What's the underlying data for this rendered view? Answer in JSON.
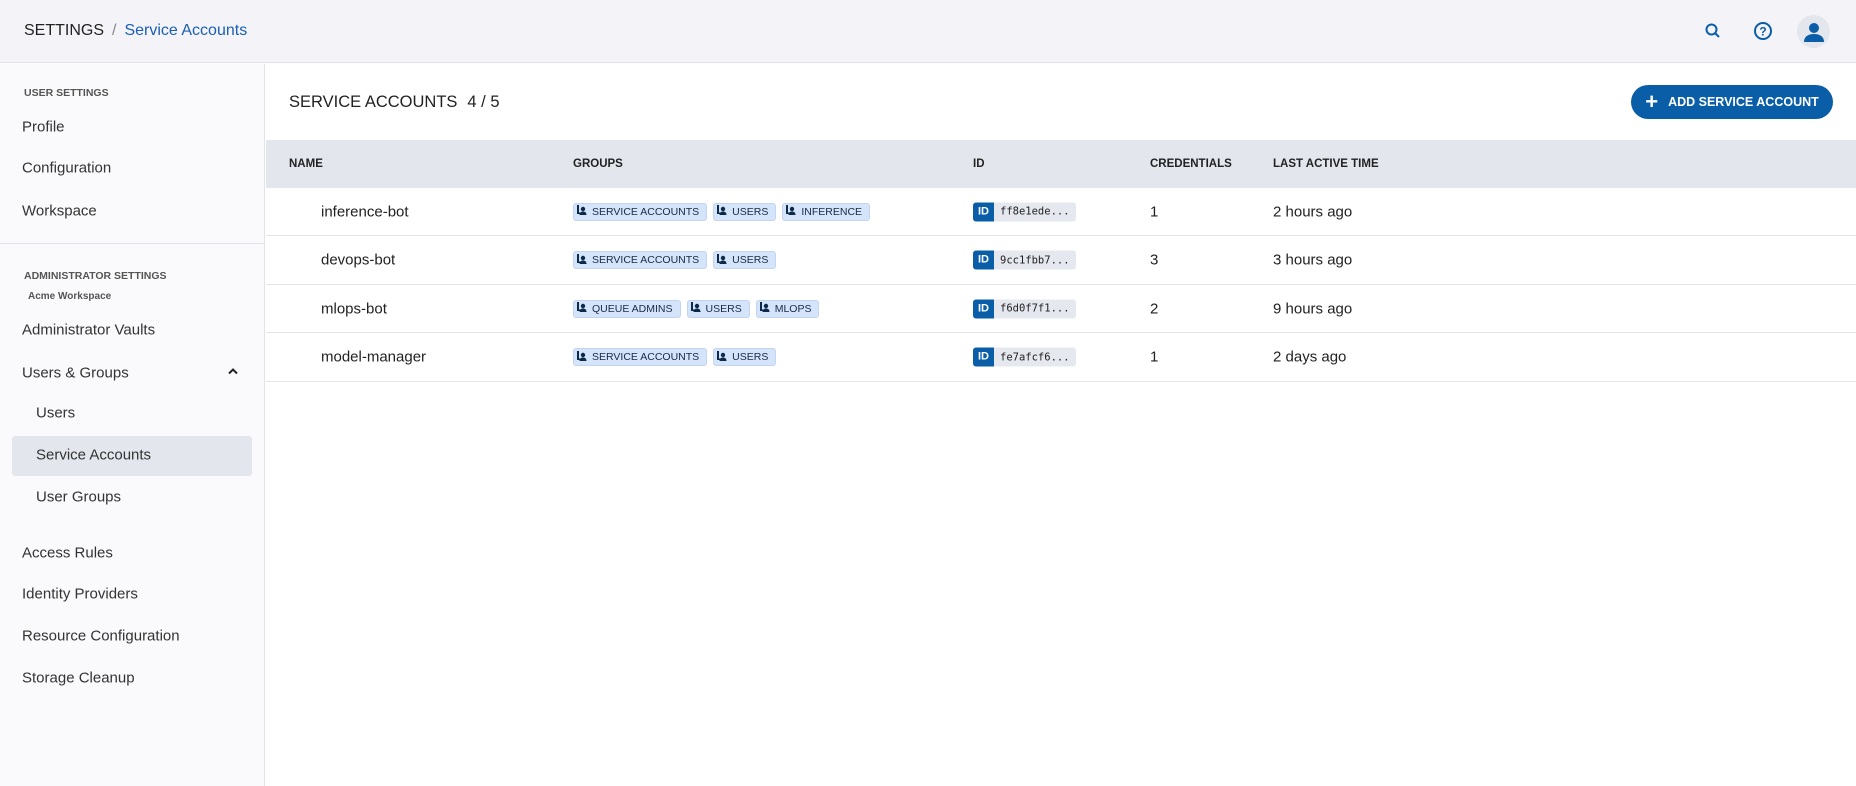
{
  "header": {
    "breadcrumb_root": "SETTINGS",
    "breadcrumb_sep": "/",
    "breadcrumb_current": "Service Accounts"
  },
  "sidebar": {
    "user_settings": "USER SETTINGS",
    "user_items": [
      "Profile",
      "Configuration",
      "Workspace"
    ],
    "admin_settings": "ADMINISTRATOR SETTINGS",
    "workspace_name": "Acme Workspace",
    "admin_vaults": "Administrator Vaults",
    "users_groups": "Users & Groups",
    "users_groups_children": [
      "Users",
      "Service Accounts",
      "User Groups"
    ],
    "selected": "Service Accounts",
    "other_items": [
      "Access Rules",
      "Identity Providers",
      "Resource Configuration",
      "Storage Cleanup"
    ]
  },
  "main": {
    "title": "SERVICE ACCOUNTS",
    "count": "4 / 5",
    "add_button": "ADD SERVICE ACCOUNT",
    "columns": [
      "NAME",
      "GROUPS",
      "ID",
      "CREDENTIALS",
      "LAST ACTIVE TIME"
    ],
    "id_tag": "ID",
    "rows": [
      {
        "name": "inference-bot",
        "groups": [
          "SERVICE ACCOUNTS",
          "USERS",
          "INFERENCE"
        ],
        "id": "ff8e1ede...",
        "credentials": "1",
        "last_active": "2 hours ago"
      },
      {
        "name": "devops-bot",
        "groups": [
          "SERVICE ACCOUNTS",
          "USERS"
        ],
        "id": "9cc1fbb7...",
        "credentials": "3",
        "last_active": "3 hours ago"
      },
      {
        "name": "mlops-bot",
        "groups": [
          "QUEUE ADMINS",
          "USERS",
          "MLOPS"
        ],
        "id": "f6d0f7f1...",
        "credentials": "2",
        "last_active": "9 hours ago"
      },
      {
        "name": "model-manager",
        "groups": [
          "SERVICE ACCOUNTS",
          "USERS"
        ],
        "id": "fe7afcf6...",
        "credentials": "1",
        "last_active": "2 days ago"
      }
    ]
  },
  "colors": {
    "accent": "#0a5ea8",
    "chip_bg": "#d4e4fb",
    "header_bg": "#f4f4f8"
  }
}
